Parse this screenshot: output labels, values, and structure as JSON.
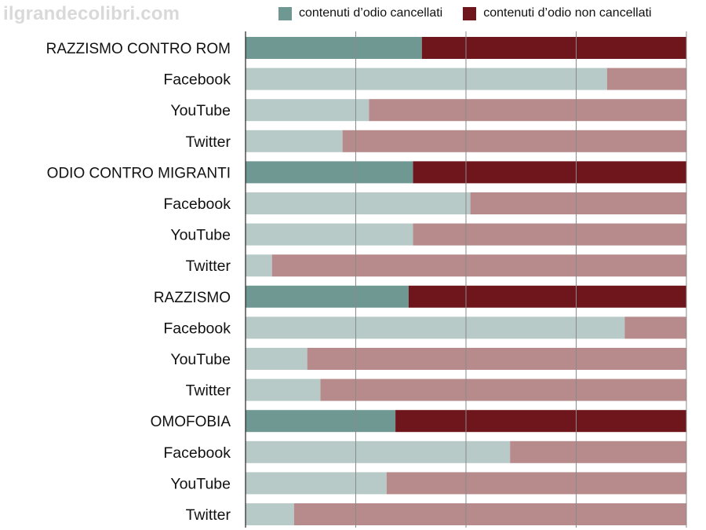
{
  "watermark": "ilgrandecolibri.com",
  "colors": {
    "deleted_group": "#6f9893",
    "kept_group": "#6e161b",
    "deleted_platform": "#b8cac8",
    "kept_platform": "#b78a8b",
    "grid": "#8a8a8a",
    "axis": "#222222"
  },
  "chart_data": {
    "type": "bar",
    "orientation": "horizontal",
    "stacked": true,
    "percent_stacked": true,
    "xlim": [
      0,
      100
    ],
    "grid": true,
    "legend_position": "top",
    "series": [
      {
        "name": "contenuti d’odio cancellati"
      },
      {
        "name": "contenuti d’odio non cancellati"
      }
    ],
    "rows": [
      {
        "label": "RAZZISMO CONTRO ROM",
        "group": true,
        "deleted": 40
      },
      {
        "label": "Facebook",
        "group": false,
        "deleted": 82
      },
      {
        "label": "YouTube",
        "group": false,
        "deleted": 28
      },
      {
        "label": "Twitter",
        "group": false,
        "deleted": 22
      },
      {
        "label": "ODIO CONTRO MIGRANTI",
        "group": true,
        "deleted": 38
      },
      {
        "label": "Facebook",
        "group": false,
        "deleted": 51
      },
      {
        "label": "YouTube",
        "group": false,
        "deleted": 38
      },
      {
        "label": "Twitter",
        "group": false,
        "deleted": 6
      },
      {
        "label": "RAZZISMO",
        "group": true,
        "deleted": 37
      },
      {
        "label": "Facebook",
        "group": false,
        "deleted": 86
      },
      {
        "label": "YouTube",
        "group": false,
        "deleted": 14
      },
      {
        "label": "Twitter",
        "group": false,
        "deleted": 17
      },
      {
        "label": "OMOFOBIA",
        "group": true,
        "deleted": 34
      },
      {
        "label": "Facebook",
        "group": false,
        "deleted": 60
      },
      {
        "label": "YouTube",
        "group": false,
        "deleted": 32
      },
      {
        "label": "Twitter",
        "group": false,
        "deleted": 11
      }
    ]
  }
}
